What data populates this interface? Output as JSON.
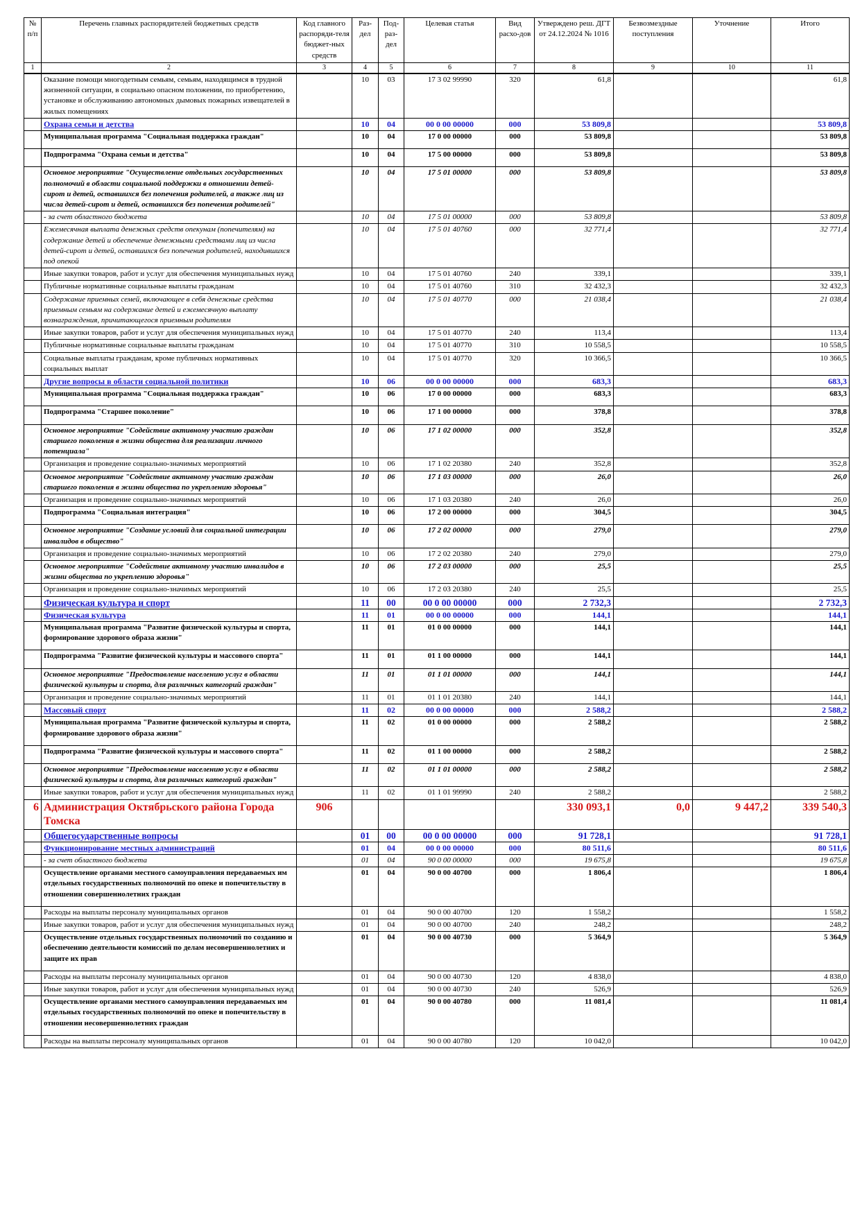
{
  "table": {
    "header": [
      "№ п/п",
      "Перечень главных распорядителей бюджетных средств",
      "Код главного распоряди-теля бюджет-ных средств",
      "Раз-дел",
      "Под-раз-дел",
      "Целевая статья",
      "Вид расхо-дов",
      "Утверждено реш. ДГТ от 24.12.2024 № 1016",
      "Безвозмездные поступления",
      "Уточнение",
      "Итого"
    ],
    "numbers": [
      "1",
      "2",
      "3",
      "4",
      "5",
      "6",
      "7",
      "8",
      "9",
      "10",
      "11"
    ],
    "rows": [
      {
        "style": "normal",
        "cells": [
          null,
          "Оказание помощи многодетным семьям, семьям, находящимся в трудной жизненной ситуации, в социально опасном положении, по приобретению, установке и обслуживанию автономных дымовых пожарных извещателей в жилых помещениях",
          null,
          "10",
          "03",
          "17 3 02 99990",
          "320",
          "61,8",
          null,
          null,
          "61,8"
        ]
      },
      {
        "style": "blue",
        "cells": [
          null,
          "Охрана семьи и детства",
          null,
          "10",
          "04",
          "00 0 00 00000",
          "000",
          "53 809,8",
          null,
          null,
          "53 809,8"
        ]
      },
      {
        "style": "bold",
        "cells": [
          null,
          "Муниципальная программа \"Социальная поддержка граждан\"",
          null,
          "10",
          "04",
          "17 0 00 00000",
          "000",
          "53 809,8",
          null,
          null,
          "53 809,8"
        ]
      },
      {
        "style": "bold",
        "cells": [
          null,
          "Подпрограмма \"Охрана семьи и детства\"",
          null,
          "10",
          "04",
          "17 5 00 00000",
          "000",
          "53 809,8",
          null,
          null,
          "53 809,8"
        ]
      },
      {
        "style": "bolditalic",
        "cells": [
          null,
          "Основное мероприятие \"Осуществление отдельных государственных полномочий в области социальной поддержки в отношении детей-сирот и детей, оставшихся без попечения родителей, а также лиц из числа детей-сирот и детей, оставшихся без попечения родителей\"",
          null,
          "10",
          "04",
          "17 5 01 00000",
          "000",
          "53 809,8",
          null,
          null,
          "53 809,8"
        ]
      },
      {
        "style": "italic",
        "cells": [
          null,
          "- за счет областного бюджета",
          null,
          "10",
          "04",
          "17 5 01 00000",
          "000",
          "53 809,8",
          null,
          null,
          "53 809,8"
        ]
      },
      {
        "style": "italic",
        "cells": [
          null,
          "Ежемесячная выплата денежных средств опекунам (попечителям) на содержание детей и обеспечение денежными средствами лиц из числа детей-сирот и детей, оставшихся без попечения родителей, находившихся под опекой",
          null,
          "10",
          "04",
          "17 5 01 40760",
          "000",
          "32 771,4",
          null,
          null,
          "32 771,4"
        ]
      },
      {
        "style": "normal",
        "cells": [
          null,
          "Иные закупки товаров, работ и услуг для обеспечения муниципальных нужд",
          null,
          "10",
          "04",
          "17 5 01 40760",
          "240",
          "339,1",
          null,
          null,
          "339,1"
        ]
      },
      {
        "style": "normal",
        "cells": [
          null,
          "Публичные нормативные социальные выплаты гражданам",
          null,
          "10",
          "04",
          "17 5 01 40760",
          "310",
          "32 432,3",
          null,
          null,
          "32 432,3"
        ]
      },
      {
        "style": "italic",
        "cells": [
          null,
          "Содержание приемных семей, включающее в себя денежные средства приемным семьям на содержание детей и ежемесячную выплату вознаграждения, причитающегося приемным родителям",
          null,
          "10",
          "04",
          "17 5 01 40770",
          "000",
          "21 038,4",
          null,
          null,
          "21 038,4"
        ]
      },
      {
        "style": "normal",
        "cells": [
          null,
          "Иные закупки товаров, работ и услуг для обеспечения муниципальных нужд",
          null,
          "10",
          "04",
          "17 5 01 40770",
          "240",
          "113,4",
          null,
          null,
          "113,4"
        ]
      },
      {
        "style": "normal",
        "cells": [
          null,
          "Публичные нормативные социальные выплаты гражданам",
          null,
          "10",
          "04",
          "17 5 01 40770",
          "310",
          "10 558,5",
          null,
          null,
          "10 558,5"
        ]
      },
      {
        "style": "normal",
        "cells": [
          null,
          "Социальные выплаты гражданам, кроме публичных нормативных социальных выплат",
          null,
          "10",
          "04",
          "17 5 01 40770",
          "320",
          "10 366,5",
          null,
          null,
          "10 366,5"
        ]
      },
      {
        "style": "blue",
        "cells": [
          null,
          "Другие вопросы в области социальной политики",
          null,
          "10",
          "06",
          "00 0 00 00000",
          "000",
          "683,3",
          null,
          null,
          "683,3"
        ]
      },
      {
        "style": "bold",
        "cells": [
          null,
          "Муниципальная программа \"Социальная поддержка граждан\"",
          null,
          "10",
          "06",
          "17 0 00 00000",
          "000",
          "683,3",
          null,
          null,
          "683,3"
        ]
      },
      {
        "style": "bold",
        "cells": [
          null,
          "Подпрограмма \"Старшее поколение\"",
          null,
          "10",
          "06",
          "17 1 00 00000",
          "000",
          "378,8",
          null,
          null,
          "378,8"
        ]
      },
      {
        "style": "bolditalic",
        "cells": [
          null,
          "Основное мероприятие \"Содействие активному участию граждан старшего поколения в жизни общества для реализации личного потенциала\"",
          null,
          "10",
          "06",
          "17 1 02 00000",
          "000",
          "352,8",
          null,
          null,
          "352,8"
        ]
      },
      {
        "style": "normal",
        "cells": [
          null,
          "Организация и проведение социально-значимых мероприятий",
          null,
          "10",
          "06",
          "17 1 02 20380",
          "240",
          "352,8",
          null,
          null,
          "352,8"
        ]
      },
      {
        "style": "bolditalic",
        "cells": [
          null,
          "Основное мероприятие \"Содействие активному участию граждан старшего поколения в жизни общества по укреплению здоровья\"",
          null,
          "10",
          "06",
          "17 1 03 00000",
          "000",
          "26,0",
          null,
          null,
          "26,0"
        ]
      },
      {
        "style": "normal",
        "cells": [
          null,
          "Организация и проведение социально-значимых мероприятий",
          null,
          "10",
          "06",
          "17 1 03 20380",
          "240",
          "26,0",
          null,
          null,
          "26,0"
        ]
      },
      {
        "style": "bold",
        "cells": [
          null,
          "Подпрограмма \"Социальная интеграция\"",
          null,
          "10",
          "06",
          "17 2 00 00000",
          "000",
          "304,5",
          null,
          null,
          "304,5"
        ]
      },
      {
        "style": "bolditalic",
        "cells": [
          null,
          "Основное мероприятие \"Создание условий для социальной интеграции инвалидов в общество\"",
          null,
          "10",
          "06",
          "17 2 02 00000",
          "000",
          "279,0",
          null,
          null,
          "279,0"
        ]
      },
      {
        "style": "normal",
        "cells": [
          null,
          "Организация и проведение социально-значимых мероприятий",
          null,
          "10",
          "06",
          "17 2 02 20380",
          "240",
          "279,0",
          null,
          null,
          "279,0"
        ]
      },
      {
        "style": "bolditalic",
        "cells": [
          null,
          "Основное мероприятие \"Содействие активному участию инвалидов в жизни общества по укреплению здоровья\"",
          null,
          "10",
          "06",
          "17 2 03 00000",
          "000",
          "25,5",
          null,
          null,
          "25,5"
        ]
      },
      {
        "style": "normal",
        "cells": [
          null,
          "Организация и проведение социально-значимых мероприятий",
          null,
          "10",
          "06",
          "17 2 03 20380",
          "240",
          "25,5",
          null,
          null,
          "25,5"
        ]
      },
      {
        "style": "bluebig",
        "cells": [
          null,
          "Физическая культура и спорт",
          null,
          "11",
          "00",
          "00 0 00 00000",
          "000",
          "2 732,3",
          null,
          null,
          "2 732,3"
        ]
      },
      {
        "style": "blue",
        "cells": [
          null,
          "Физическая культура",
          null,
          "11",
          "01",
          "00 0 00 00000",
          "000",
          "144,1",
          null,
          null,
          "144,1"
        ]
      },
      {
        "style": "bold",
        "cells": [
          null,
          "Муниципальная программа \"Развитие физической культуры и спорта, формирование здорового образа жизни\"",
          null,
          "11",
          "01",
          "01 0 00 00000",
          "000",
          "144,1",
          null,
          null,
          "144,1"
        ]
      },
      {
        "style": "bold",
        "cells": [
          null,
          "Подпрограмма \"Развитие физической культуры и массового спорта\"",
          null,
          "11",
          "01",
          "01 1 00 00000",
          "000",
          "144,1",
          null,
          null,
          "144,1"
        ]
      },
      {
        "style": "bolditalic",
        "cells": [
          null,
          "Основное мероприятие \"Предоставление населению услуг в области физической культуры и спорта, для различных категорий граждан\"",
          null,
          "11",
          "01",
          "01 1 01 00000",
          "000",
          "144,1",
          null,
          null,
          "144,1"
        ]
      },
      {
        "style": "normal",
        "cells": [
          null,
          "Организация и проведение социально-значимых мероприятий",
          null,
          "11",
          "01",
          "01 1 01 20380",
          "240",
          "144,1",
          null,
          null,
          "144,1"
        ]
      },
      {
        "style": "blue",
        "cells": [
          null,
          "Массовый спорт",
          null,
          "11",
          "02",
          "00 0 00 00000",
          "000",
          "2 588,2",
          null,
          null,
          "2 588,2"
        ]
      },
      {
        "style": "bold",
        "cells": [
          null,
          "Муниципальная программа \"Развитие физической культуры и спорта, формирование здорового образа жизни\"",
          null,
          "11",
          "02",
          "01 0 00 00000",
          "000",
          "2 588,2",
          null,
          null,
          "2 588,2"
        ]
      },
      {
        "style": "bold",
        "cells": [
          null,
          "Подпрограмма \"Развитие физической культуры и массового спорта\"",
          null,
          "11",
          "02",
          "01 1 00 00000",
          "000",
          "2 588,2",
          null,
          null,
          "2 588,2"
        ]
      },
      {
        "style": "bolditalic",
        "cells": [
          null,
          "Основное мероприятие \"Предоставление населению услуг в области физической культуры и спорта, для различных категорий граждан\"",
          null,
          "11",
          "02",
          "01 1 01 00000",
          "000",
          "2 588,2",
          null,
          null,
          "2 588,2"
        ]
      },
      {
        "style": "normal",
        "cells": [
          null,
          "Иные закупки товаров, работ и услуг для обеспечения муниципальных нужд",
          null,
          "11",
          "02",
          "01 1 01 99990",
          "240",
          "2 588,2",
          null,
          null,
          "2 588,2"
        ]
      },
      {
        "style": "red",
        "cells": [
          "6",
          "Администрация Октябрьского района Города Томска",
          "906",
          null,
          null,
          null,
          null,
          "330 093,1",
          "0,0",
          "9 447,2",
          "339 540,3"
        ]
      },
      {
        "style": "bluebig",
        "cells": [
          null,
          "Общегосударственные вопросы",
          null,
          "01",
          "00",
          "00 0 00 00000",
          "000",
          "91 728,1",
          null,
          null,
          "91 728,1"
        ]
      },
      {
        "style": "blue",
        "cells": [
          null,
          "Функционирование местных администраций",
          null,
          "01",
          "04",
          "00 0 00 00000",
          "000",
          "80 511,6",
          null,
          null,
          "80 511,6"
        ]
      },
      {
        "style": "italic",
        "cells": [
          null,
          "- за счет областного бюджета",
          null,
          "01",
          "04",
          "90 0 00 00000",
          "000",
          "19 675,8",
          null,
          null,
          "19 675,8"
        ]
      },
      {
        "style": "bold",
        "cells": [
          null,
          "Осуществление органами местного самоуправления передаваемых им отдельных государственных полномочий по опеке и попечительству в отношении совершеннолетних граждан",
          null,
          "01",
          "04",
          "90 0 00 40700",
          "000",
          "1 806,4",
          null,
          null,
          "1 806,4"
        ]
      },
      {
        "style": "normal",
        "cells": [
          null,
          "Расходы на выплаты персоналу муниципальных органов",
          null,
          "01",
          "04",
          "90 0 00 40700",
          "120",
          "1 558,2",
          null,
          null,
          "1 558,2"
        ]
      },
      {
        "style": "normal",
        "cells": [
          null,
          "Иные закупки товаров, работ и услуг для обеспечения муниципальных нужд",
          null,
          "01",
          "04",
          "90 0 00 40700",
          "240",
          "248,2",
          null,
          null,
          "248,2"
        ]
      },
      {
        "style": "bold",
        "cells": [
          null,
          "Осуществление отдельных государственных полномочий по созданию и обеспечению деятельности комиссий по делам несовершеннолетних и защите их прав",
          null,
          "01",
          "04",
          "90 0 00 40730",
          "000",
          "5 364,9",
          null,
          null,
          "5 364,9"
        ]
      },
      {
        "style": "normal",
        "cells": [
          null,
          "Расходы на выплаты персоналу муниципальных органов",
          null,
          "01",
          "04",
          "90 0 00 40730",
          "120",
          "4 838,0",
          null,
          null,
          "4 838,0"
        ]
      },
      {
        "style": "normal",
        "cells": [
          null,
          "Иные закупки товаров, работ и услуг для обеспечения муниципальных нужд",
          null,
          "01",
          "04",
          "90 0 00 40730",
          "240",
          "526,9",
          null,
          null,
          "526,9"
        ]
      },
      {
        "style": "bold",
        "cells": [
          null,
          "Осуществление органами местного самоуправления передаваемых им отдельных государственных полномочий по опеке и попечительству в отношении несовершеннолетних граждан",
          null,
          "01",
          "04",
          "90 0 00 40780",
          "000",
          "11 081,4",
          null,
          null,
          "11 081,4"
        ]
      },
      {
        "style": "normal",
        "cells": [
          null,
          "Расходы на выплаты персоналу муниципальных органов",
          null,
          "01",
          "04",
          "90 0 00 40780",
          "120",
          "10 042,0",
          null,
          null,
          "10 042,0"
        ]
      }
    ]
  }
}
